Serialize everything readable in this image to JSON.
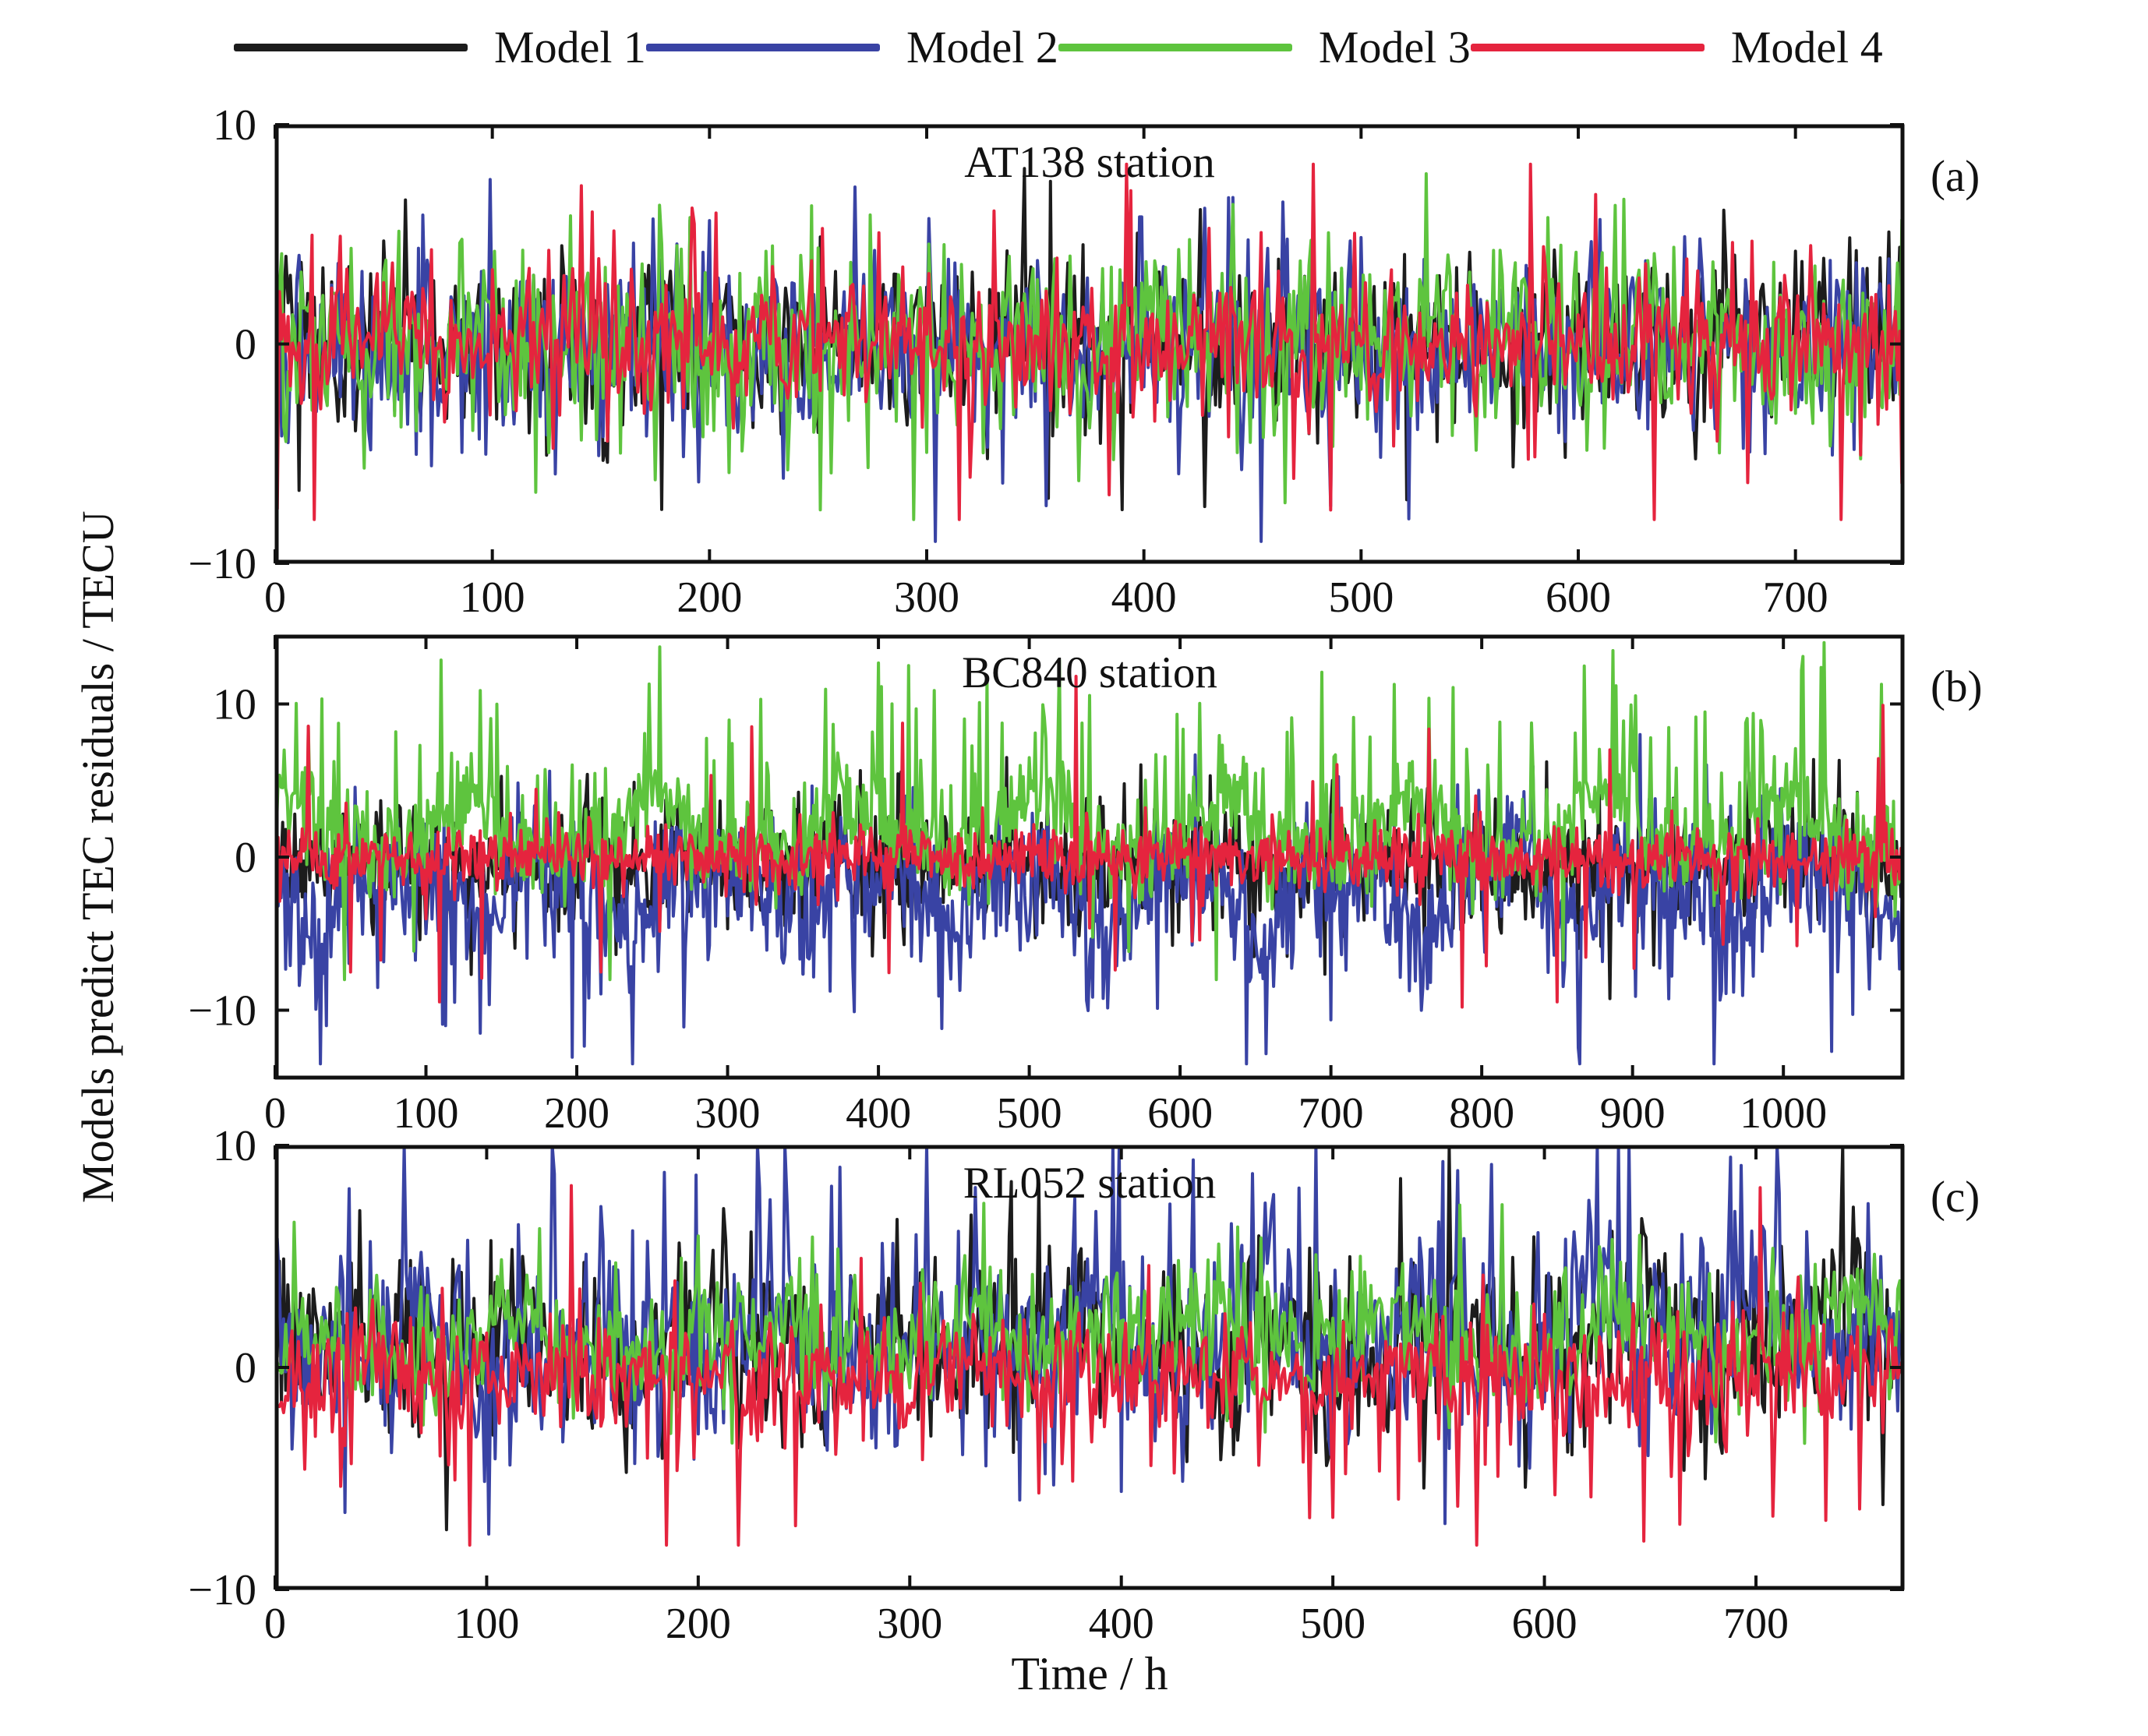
{
  "figure": {
    "x_axis_label": "Time / h",
    "y_axis_label": "Models predict TEC residuals / TECU"
  },
  "legend": [
    {
      "label": "Model 1",
      "color": "#1c1c1c"
    },
    {
      "label": "Model 2",
      "color": "#3943a4"
    },
    {
      "label": "Model 3",
      "color": "#5ec43e"
    },
    {
      "label": "Model 4",
      "color": "#e5243e"
    }
  ],
  "chart_data": {
    "type": "line",
    "x_unit": "h",
    "y_unit": "TECU",
    "grid": false,
    "legend_position": "top",
    "panels": [
      {
        "id": "a",
        "tag": "(a)",
        "title": "AT138 station",
        "xlim": [
          0,
          750
        ],
        "xticks": [
          0,
          100,
          200,
          300,
          400,
          500,
          600,
          700
        ],
        "ylim": [
          -10,
          10
        ],
        "yticks": [
          -10,
          0,
          10
        ],
        "sample_step_h": 1,
        "description": "Four model residual series oscillating around 0, mostly within ±6 TECU with spikes to ±8 (blue dip to −9).",
        "series": [
          {
            "name": "Model 1",
            "color": "#1c1c1c",
            "seed": 101,
            "std": 2.0,
            "bias": 0.1,
            "spike_prob": 0.06,
            "spike_min": 2.5,
            "spike_max": 5.5,
            "pos_frac": 0.55,
            "clip_min": -8.5,
            "clip_max": 8.0
          },
          {
            "name": "Model 2",
            "color": "#3943a4",
            "seed": 102,
            "std": 2.1,
            "bias": -0.2,
            "spike_prob": 0.05,
            "spike_min": 2.5,
            "spike_max": 6.5,
            "pos_frac": 0.45,
            "clip_min": -9.0,
            "clip_max": 7.5
          },
          {
            "name": "Model 3",
            "color": "#5ec43e",
            "seed": 103,
            "std": 2.2,
            "bias": 0.0,
            "spike_prob": 0.07,
            "spike_min": 2.5,
            "spike_max": 5.5,
            "pos_frac": 0.55,
            "clip_min": -8.0,
            "clip_max": 8.0
          },
          {
            "name": "Model 4",
            "color": "#e5243e",
            "seed": 104,
            "std": 1.4,
            "bias": 0.0,
            "spike_prob": 0.1,
            "spike_min": 3.0,
            "spike_max": 7.5,
            "pos_frac": 0.5,
            "clip_min": -8.0,
            "clip_max": 8.2
          }
        ]
      },
      {
        "id": "b",
        "tag": "(b)",
        "title": "BC840 station",
        "xlim": [
          0,
          1080
        ],
        "xticks": [
          0,
          100,
          200,
          300,
          400,
          500,
          600,
          700,
          800,
          900,
          1000
        ],
        "ylim": [
          -14.5,
          14.5
        ],
        "yticks": [
          -10,
          0,
          10
        ],
        "sample_step_h": 1,
        "description": "Green shows large positive excursions up to ~14 TECU, blue/black large negative dips to ~−13, red stays near 0 with occasional ±11 spikes.",
        "series": [
          {
            "name": "Model 1",
            "color": "#1c1c1c",
            "seed": 201,
            "std": 2.0,
            "bias": -0.5,
            "spike_prob": 0.05,
            "spike_min": 2.0,
            "spike_max": 6.0,
            "pos_frac": 0.35,
            "clip_min": -11.0,
            "clip_max": 8.0
          },
          {
            "name": "Model 2",
            "color": "#3943a4",
            "seed": 202,
            "std": 2.3,
            "bias": -1.0,
            "spike_prob": 0.08,
            "spike_min": 3.0,
            "spike_max": 9.0,
            "pos_frac": 0.15,
            "clip_min": -13.5,
            "clip_max": 8.0,
            "lf_amp": -3.5,
            "lf_freq": 0.06,
            "lf_pos_only": true
          },
          {
            "name": "Model 3",
            "color": "#5ec43e",
            "seed": 203,
            "std": 1.8,
            "bias": 0.5,
            "spike_prob": 0.1,
            "spike_min": 4.0,
            "spike_max": 11.0,
            "pos_frac": 0.9,
            "clip_min": -8.0,
            "clip_max": 14.0,
            "lf_amp": 3.5,
            "lf_freq": 0.05,
            "lf_phase": 1.5,
            "lf_pos_only": true
          },
          {
            "name": "Model 4",
            "color": "#e5243e",
            "seed": 204,
            "std": 1.1,
            "bias": 0.0,
            "spike_prob": 0.04,
            "spike_min": 4.0,
            "spike_max": 10.0,
            "pos_frac": 0.55,
            "clip_min": -11.0,
            "clip_max": 12.0
          }
        ]
      },
      {
        "id": "c",
        "tag": "(c)",
        "title": "RL052 station",
        "xlim": [
          0,
          770
        ],
        "xticks": [
          0,
          100,
          200,
          300,
          400,
          500,
          600,
          700
        ],
        "ylim": [
          -10,
          10
        ],
        "yticks": [
          -10,
          0,
          10
        ],
        "sample_step_h": 1,
        "description": "Blue and black show tall positive bursts up to 10 TECU (denser toward the right), green moderate positive bumps to ~6, red oscillates near 0 with negative spikes to ~−8.",
        "series": [
          {
            "name": "Model 1",
            "color": "#1c1c1c",
            "seed": 301,
            "std": 2.0,
            "bias": 0.5,
            "spike_prob": 0.07,
            "spike_min": 2.5,
            "spike_max": 6.5,
            "pos_frac": 0.8,
            "clip_min": -7.5,
            "clip_max": 10.0,
            "lf_amp": 2.5,
            "lf_freq": 0.07,
            "lf_pos_only": true,
            "lf_grow": true
          },
          {
            "name": "Model 2",
            "color": "#3943a4",
            "seed": 302,
            "std": 2.2,
            "bias": 0.5,
            "spike_prob": 0.1,
            "spike_min": 3.0,
            "spike_max": 8.0,
            "pos_frac": 0.8,
            "clip_min": -7.5,
            "clip_max": 10.0,
            "lf_amp": 4.0,
            "lf_freq": 0.08,
            "lf_phase": 2.0,
            "lf_pos_only": true,
            "lf_grow": true
          },
          {
            "name": "Model 3",
            "color": "#5ec43e",
            "seed": 303,
            "std": 1.5,
            "bias": 0.8,
            "spike_prob": 0.05,
            "spike_min": 2.0,
            "spike_max": 4.0,
            "pos_frac": 0.85,
            "clip_min": -6.5,
            "clip_max": 9.0,
            "lf_amp": 2.0,
            "lf_freq": 0.06,
            "lf_phase": 1.0,
            "lf_pos_only": true,
            "lf_grow": true
          },
          {
            "name": "Model 4",
            "color": "#e5243e",
            "seed": 304,
            "std": 1.4,
            "bias": -0.4,
            "spike_prob": 0.08,
            "spike_min": 2.5,
            "spike_max": 7.0,
            "pos_frac": 0.25,
            "clip_min": -8.0,
            "clip_max": 10.0
          }
        ]
      }
    ]
  }
}
